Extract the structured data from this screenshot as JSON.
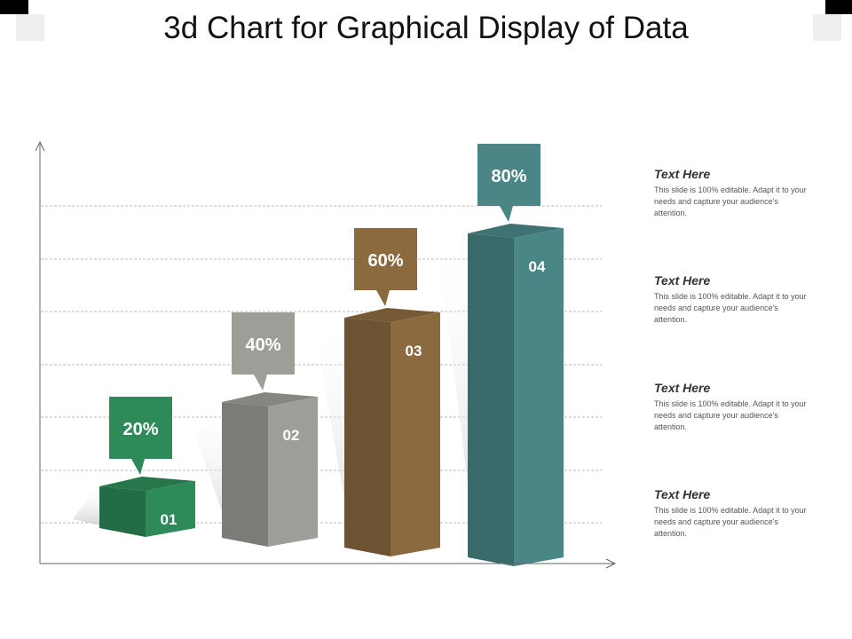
{
  "title": "3d Chart for Graphical Display of Data",
  "chart_data": {
    "type": "bar",
    "categories": [
      "01",
      "02",
      "03",
      "04"
    ],
    "values": [
      20,
      40,
      60,
      80
    ],
    "value_suffix": "%",
    "colors": [
      "#2e8a58",
      "#9e9e98",
      "#8b6a40",
      "#4a8686"
    ],
    "ylim": [
      0,
      100
    ],
    "grid": true,
    "xlabel": "",
    "ylabel": ""
  },
  "descriptions": [
    {
      "heading": "Text Here",
      "body": "This slide is 100% editable. Adapt it to your needs and capture your audience's attention."
    },
    {
      "heading": "Text Here",
      "body": "This slide is 100% editable. Adapt it to your needs and capture your audience's attention."
    },
    {
      "heading": "Text Here",
      "body": "This slide is 100% editable. Adapt it to your needs and capture your audience's attention."
    },
    {
      "heading": "Text Here",
      "body": "This slide is 100% editable. Adapt it to your needs and capture your audience's attention."
    }
  ]
}
